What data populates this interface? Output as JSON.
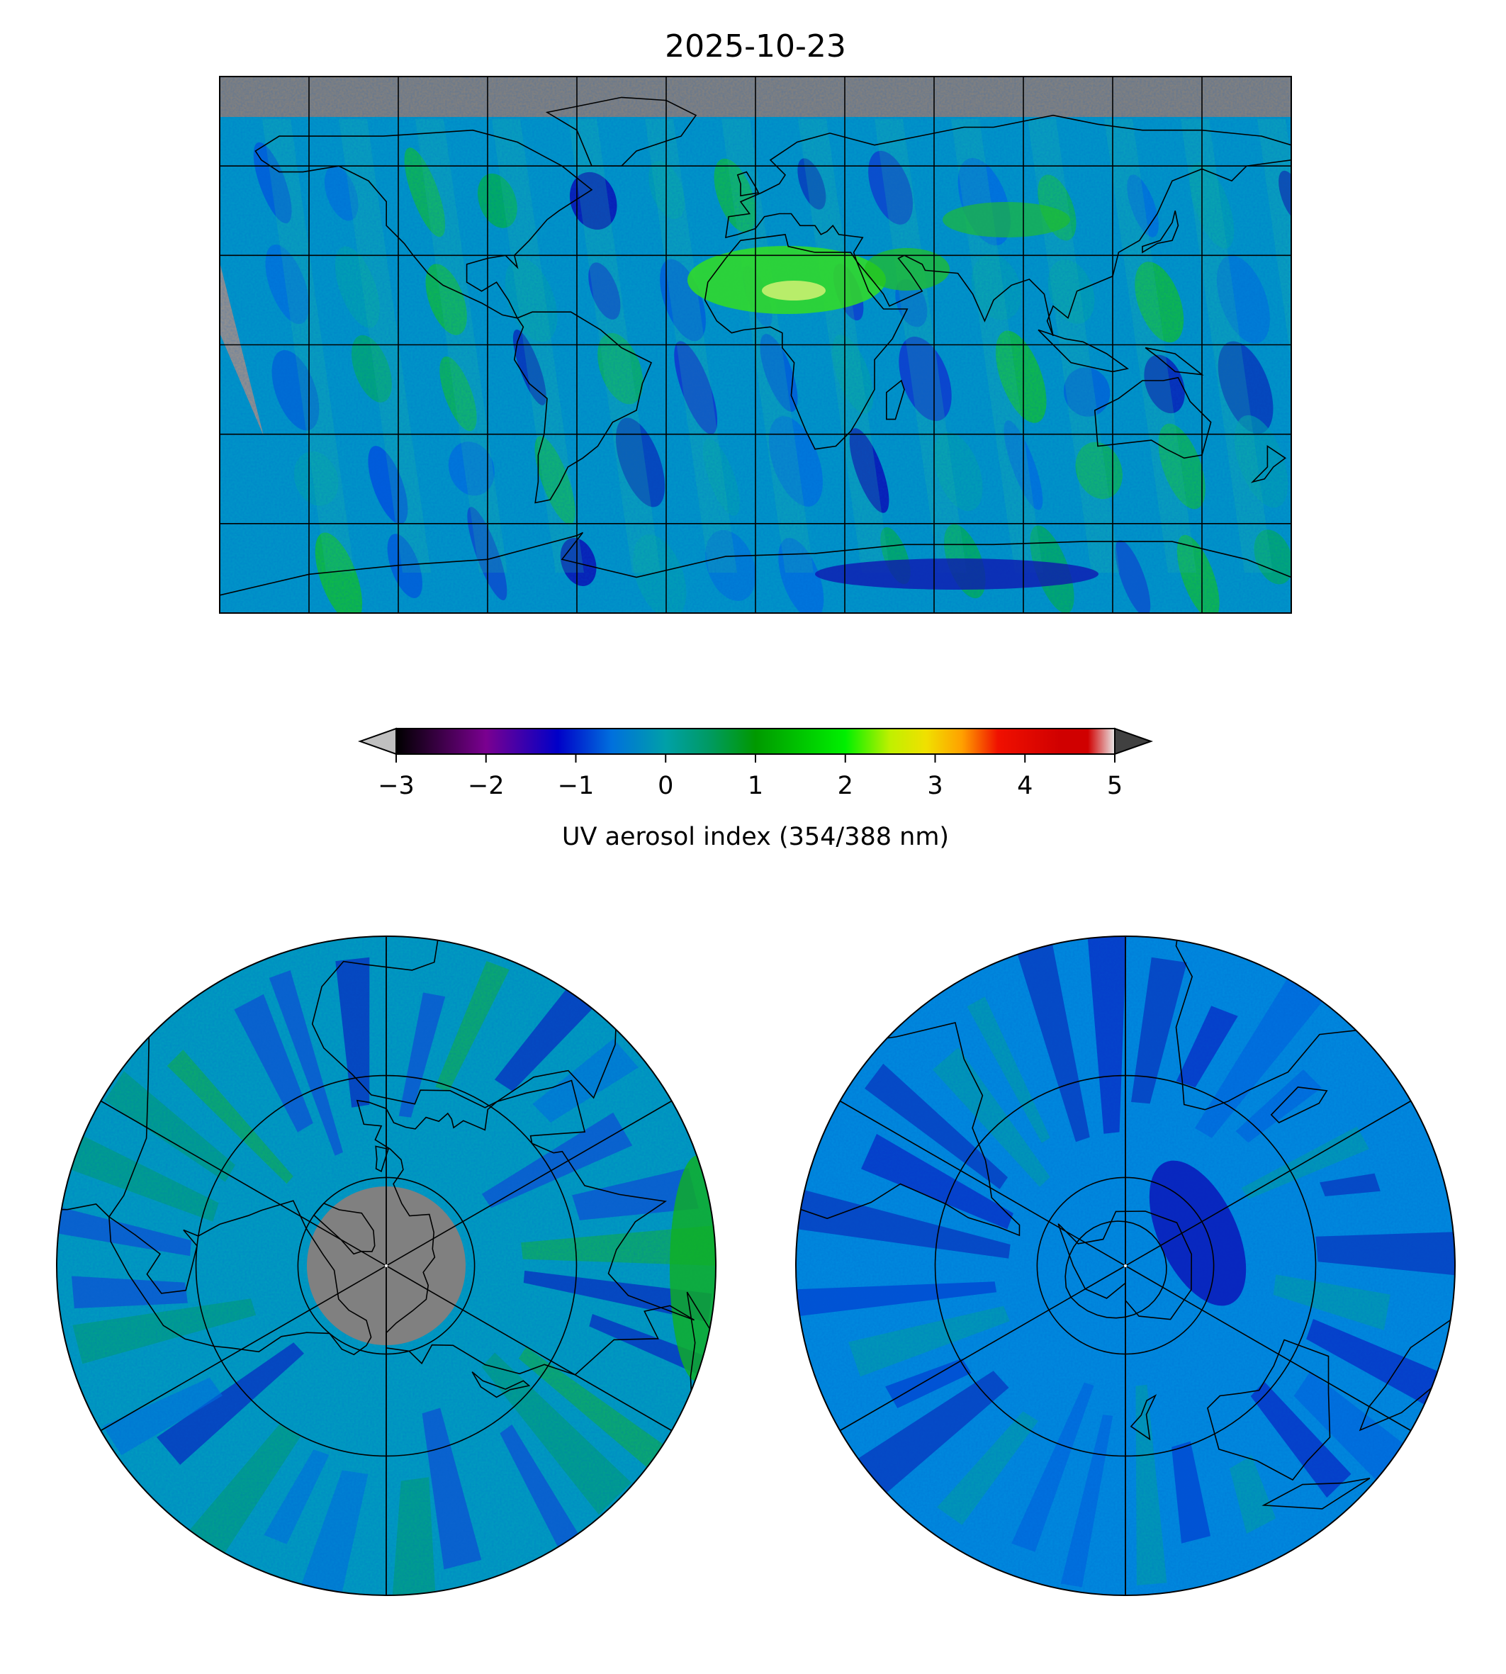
{
  "figure": {
    "title": "2025-10-23"
  },
  "colorbar": {
    "label": "UV aerosol index (354/388 nm)",
    "min": -3,
    "max": 5,
    "ticks": [
      "−3",
      "−2",
      "−1",
      "0",
      "1",
      "2",
      "3",
      "4",
      "5"
    ],
    "tick_values": [
      -3,
      -2,
      -1,
      0,
      1,
      2,
      3,
      4,
      5
    ],
    "extend": "both",
    "under_color": "#c0c0c0",
    "over_color": "#404040",
    "stops": [
      {
        "v": -3.0,
        "c": "#000000"
      },
      {
        "v": -2.0,
        "c": "#7a0090"
      },
      {
        "v": -1.2,
        "c": "#0000c8"
      },
      {
        "v": -0.6,
        "c": "#0070dd"
      },
      {
        "v": 0.0,
        "c": "#00a0a8"
      },
      {
        "v": 0.5,
        "c": "#009a60"
      },
      {
        "v": 1.0,
        "c": "#009900"
      },
      {
        "v": 2.0,
        "c": "#00f000"
      },
      {
        "v": 2.5,
        "c": "#c0f000"
      },
      {
        "v": 2.9,
        "c": "#f0e000"
      },
      {
        "v": 3.3,
        "c": "#ffa000"
      },
      {
        "v": 3.7,
        "c": "#f01000"
      },
      {
        "v": 4.4,
        "c": "#d00000"
      },
      {
        "v": 4.7,
        "c": "#d00000"
      },
      {
        "v": 5.0,
        "c": "#e8e8e8"
      }
    ]
  },
  "colors": {
    "missing_data": "#808080",
    "ocean_background": "#0090cc",
    "coastline": "#000000"
  },
  "maps": [
    {
      "id": "global",
      "projection": "PlateCarree",
      "lon_range": [
        -180,
        180
      ],
      "lat_range": [
        -90,
        90
      ],
      "gridline_spacing_deg": 30
    },
    {
      "id": "north-polar",
      "projection": "NorthPolarStereo",
      "boundary_lat": 0,
      "lat_circles": [
        30,
        60
      ],
      "meridian_spacing_deg": 60
    },
    {
      "id": "south-polar",
      "projection": "SouthPolarStereo",
      "boundary_lat": 0,
      "lat_circles": [
        -30,
        -60
      ],
      "meridian_spacing_deg": 60
    }
  ]
}
